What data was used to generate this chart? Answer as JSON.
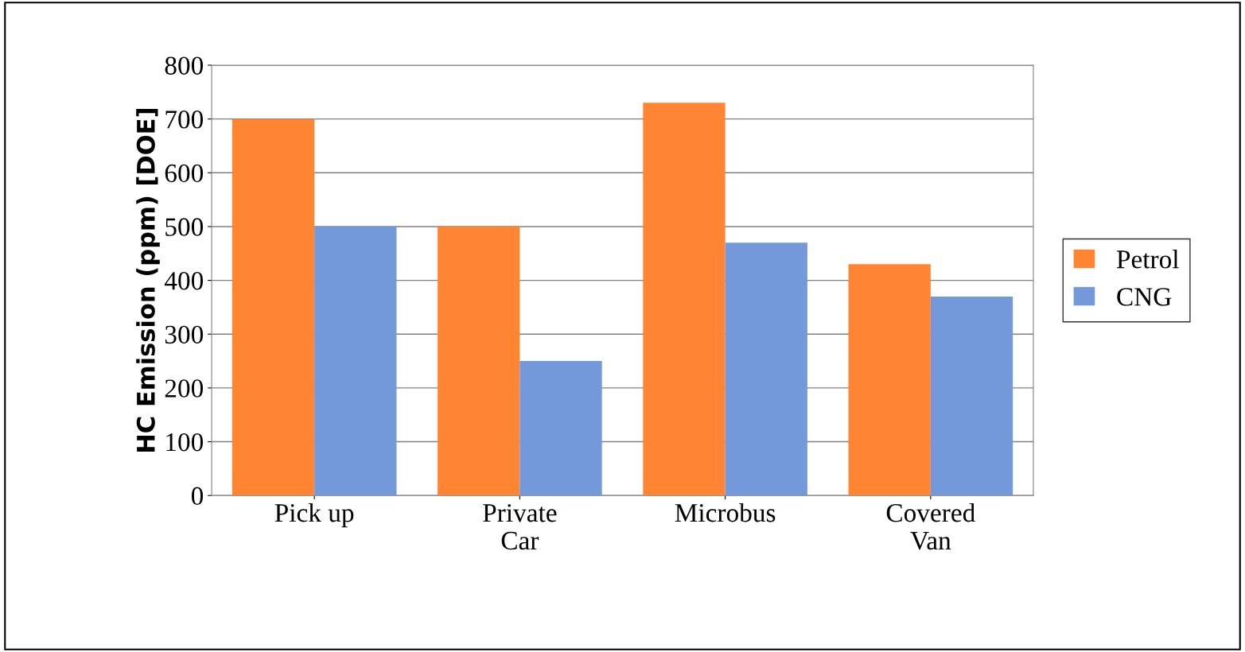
{
  "chart_data": {
    "type": "bar",
    "ylabel": "HC Emission (ppm) [DOE]",
    "categories": [
      "Pick up",
      "Private\nCar",
      "Microbus",
      "Covered\nVan"
    ],
    "series": [
      {
        "name": "Petrol",
        "color": "#ff8533",
        "values": [
          700,
          500,
          730,
          430
        ]
      },
      {
        "name": "CNG",
        "color": "#7399db",
        "values": [
          500,
          250,
          470,
          370
        ]
      }
    ],
    "ylim": [
      0,
      800
    ],
    "yticks": [
      0,
      100,
      200,
      300,
      400,
      500,
      600,
      700,
      800
    ],
    "grid": "y",
    "legend": "right"
  }
}
